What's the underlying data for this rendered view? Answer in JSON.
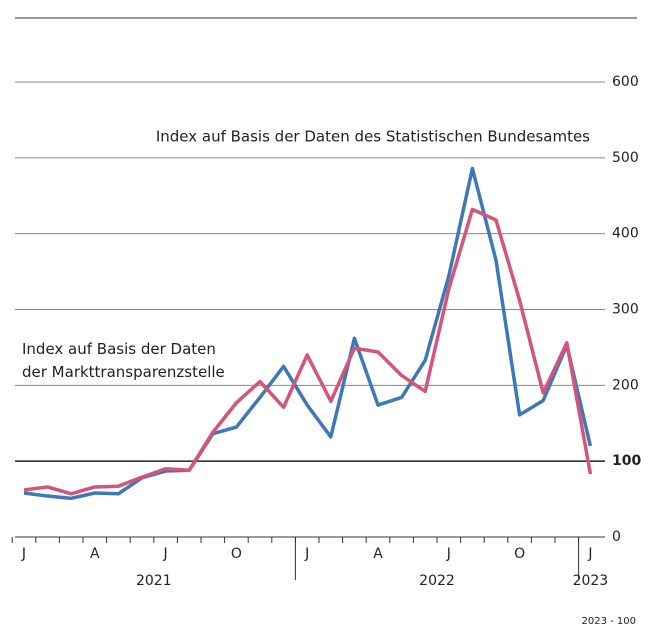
{
  "chart_data": {
    "type": "line",
    "categories": [
      "J",
      null,
      null,
      "A",
      null,
      null,
      "J",
      null,
      null,
      "O",
      null,
      null,
      "J",
      null,
      null,
      "A",
      null,
      null,
      "J",
      null,
      null,
      "O",
      null,
      null,
      "J"
    ],
    "year_labels": [
      "2021",
      "2022",
      "2023"
    ],
    "series": [
      {
        "name": "Index auf Basis der Daten des Statistischen Bundesamtes",
        "color": "#3d78b8",
        "values": [
          58,
          54,
          51,
          58,
          57,
          78,
          87,
          88,
          136,
          145,
          184,
          225,
          174,
          132,
          262,
          174,
          184,
          233,
          344,
          486,
          365,
          161,
          180,
          253,
          120
        ]
      },
      {
        "name": "Index auf Basis der Daten der Markttransparenzstelle",
        "color": "#d4547a",
        "values": [
          62,
          66,
          57,
          66,
          67,
          79,
          90,
          88,
          138,
          177,
          205,
          171,
          240,
          179,
          249,
          244,
          213,
          192,
          327,
          432,
          418,
          312,
          190,
          256,
          83
        ]
      }
    ],
    "ylim": [
      0,
      600
    ],
    "yticks": [
      0,
      100,
      200,
      300,
      400,
      500,
      600
    ],
    "grid": true,
    "source": "2023 - 100"
  }
}
